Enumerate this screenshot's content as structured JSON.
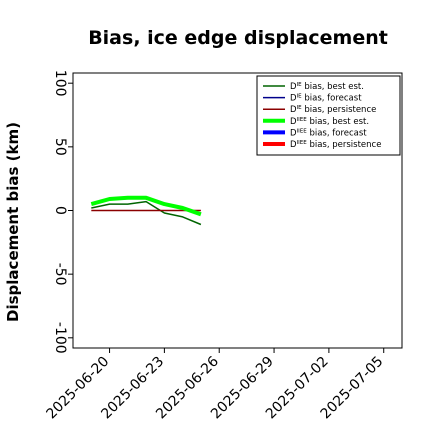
{
  "chart_data": {
    "type": "line",
    "title": "Bias, ice edge displacement",
    "xlabel": "",
    "ylabel": "Displacement bias (km)",
    "ylim": [
      -108,
      108
    ],
    "xlim": [
      "2025-06-18",
      "2025-07-06"
    ],
    "grid": false,
    "legend_placement": "top-right",
    "x_ticks": [
      {
        "label": "2025-06-20",
        "date": "2025-06-20",
        "color": "#000000"
      },
      {
        "label": "2025-06-23",
        "date": "2025-06-23",
        "color": "#000000"
      },
      {
        "label": "2025-06-26",
        "date": "2025-06-26",
        "color": "#228b22"
      },
      {
        "label": "2025-06-29",
        "date": "2025-06-29",
        "color": "#000000"
      },
      {
        "label": "2025-07-02",
        "date": "2025-07-02",
        "color": "#000000"
      },
      {
        "label": "2025-07-05",
        "date": "2025-07-05",
        "color": "#000000"
      }
    ],
    "y_ticks": [
      {
        "label": "100",
        "value": 100
      },
      {
        "label": "50",
        "value": 50
      },
      {
        "label": "0",
        "value": 0
      },
      {
        "label": "-50",
        "value": -50
      },
      {
        "label": "-100",
        "value": -100
      }
    ],
    "series": [
      {
        "name": "D",
        "sup": "IE",
        "suffix": " bias, best est.",
        "color": "#006400",
        "width": 1.5,
        "x": [
          "2025-06-19",
          "2025-06-20",
          "2025-06-21",
          "2025-06-22",
          "2025-06-23",
          "2025-06-24",
          "2025-06-25"
        ],
        "y": [
          2,
          5,
          5,
          7,
          -2,
          -5,
          -11
        ]
      },
      {
        "name": "D",
        "sup": "IE",
        "suffix": " bias, forecast",
        "color": "#00008b",
        "width": 1.5,
        "x": [],
        "y": []
      },
      {
        "name": "D",
        "sup": "IE",
        "suffix": " bias, persistence",
        "color": "#8b0000",
        "width": 1.5,
        "x": [
          "2025-06-19",
          "2025-06-25"
        ],
        "y": [
          0,
          0
        ]
      },
      {
        "name": "D",
        "sup": "IIEE",
        "suffix": " bias, best est.",
        "color": "#00ff00",
        "width": 4,
        "x": [
          "2025-06-19",
          "2025-06-20",
          "2025-06-21",
          "2025-06-22",
          "2025-06-23",
          "2025-06-24",
          "2025-06-25"
        ],
        "y": [
          5,
          9,
          10,
          10,
          5,
          2,
          -3
        ]
      },
      {
        "name": "D",
        "sup": "IIEE",
        "suffix": " bias, forecast",
        "color": "#0000ff",
        "width": 4,
        "x": [],
        "y": []
      },
      {
        "name": "D",
        "sup": "IIEE",
        "suffix": " bias, persistence",
        "color": "#ff0000",
        "width": 4,
        "x": [],
        "y": []
      }
    ]
  }
}
